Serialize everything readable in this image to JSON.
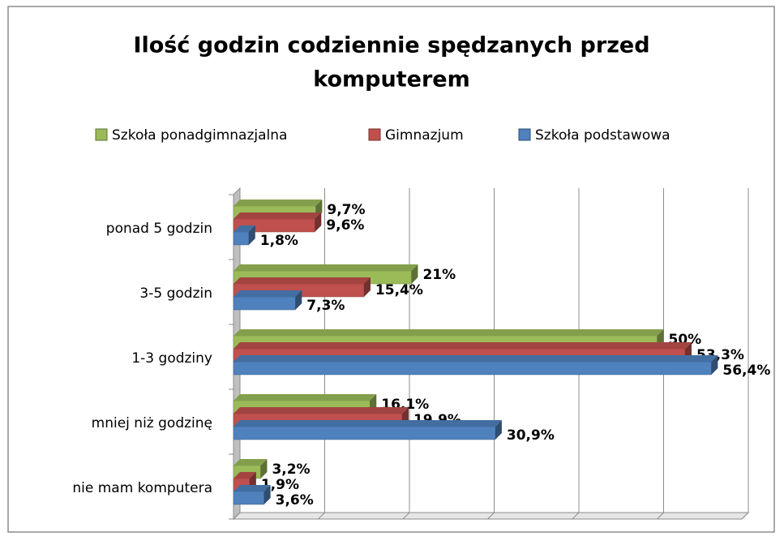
{
  "chart_data": {
    "type": "bar3d-horizontal",
    "title": "Ilość godzin codziennie spędzanych przed komputerem",
    "categories": [
      "ponad 5 godzin",
      "3-5 godzin",
      "1-3 godziny",
      "mniej niż godzinę",
      "nie mam komputera"
    ],
    "series": [
      {
        "name": "Szkoła ponadgimnazjalna",
        "color": "#9bbb59",
        "values": [
          9.7,
          21,
          50,
          16.1,
          3.2
        ],
        "value_labels": [
          "9,7%",
          "21%",
          "50%",
          "16,1%",
          "3,2%"
        ]
      },
      {
        "name": "Gimnazjum",
        "color": "#c0504d",
        "values": [
          9.6,
          15.4,
          53.3,
          19.9,
          1.9
        ],
        "value_labels": [
          "9,6%",
          "15,4%",
          "53,3%",
          "19,9%",
          "1,9%"
        ]
      },
      {
        "name": "Szkoła podstawowa",
        "color": "#4f81bd",
        "values": [
          1.8,
          7.3,
          56.4,
          30.9,
          3.6
        ],
        "value_labels": [
          "1,8%",
          "7,3%",
          "56,4%",
          "30,9%",
          "3,6%"
        ]
      }
    ],
    "xlim": [
      0,
      60
    ],
    "xticks": [
      0,
      10,
      20,
      30,
      40,
      50,
      60
    ],
    "grid": true
  }
}
